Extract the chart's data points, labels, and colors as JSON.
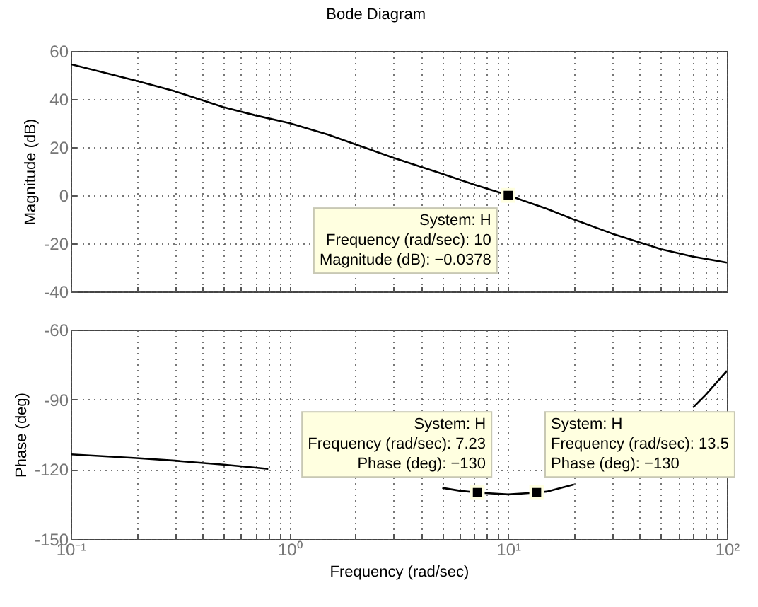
{
  "chart_data": [
    {
      "type": "line",
      "title": "Bode Diagram",
      "ylabel": "Magnitude (dB)",
      "series": [
        {
          "color": "#000000",
          "marker": "none",
          "x": [
            0.1,
            0.2,
            0.3,
            0.5,
            0.7,
            1,
            1.5,
            2,
            3,
            5,
            7,
            10,
            15,
            20,
            30,
            50,
            70,
            100
          ],
          "values": [
            54.5,
            47.6,
            43.2,
            36.6,
            33.2,
            30,
            25.2,
            21.2,
            15.5,
            8.9,
            4.4,
            0,
            -5.6,
            -10.1,
            -16,
            -22.4,
            -25.5,
            -28
          ]
        },
        {
          "type": "scatter",
          "color": "#000000",
          "marker": "square",
          "x": [
            10
          ],
          "values": [
            -0.0378
          ]
        }
      ],
      "xlim": [
        0.1,
        100
      ],
      "ylim": [
        -40,
        60
      ],
      "xticks": [
        {
          "value": 0.1,
          "label": null
        },
        {
          "value": 0.2,
          "label": null
        },
        {
          "value": 0.3,
          "label": null
        },
        {
          "value": 0.4,
          "label": null
        },
        {
          "value": 0.5,
          "label": null
        },
        {
          "value": 0.6,
          "label": null
        },
        {
          "value": 0.7,
          "label": null
        },
        {
          "value": 0.8,
          "label": null
        },
        {
          "value": 0.9,
          "label": null
        },
        {
          "value": 1,
          "label": null
        },
        {
          "value": 2,
          "label": null
        },
        {
          "value": 3,
          "label": null
        },
        {
          "value": 4,
          "label": null
        },
        {
          "value": 5,
          "label": null
        },
        {
          "value": 6,
          "label": null
        },
        {
          "value": 7,
          "label": null
        },
        {
          "value": 8,
          "label": null
        },
        {
          "value": 9,
          "label": null
        },
        {
          "value": 10,
          "label": null
        },
        {
          "value": 20,
          "label": null
        },
        {
          "value": 30,
          "label": null
        },
        {
          "value": 40,
          "label": null
        },
        {
          "value": 50,
          "label": null
        },
        {
          "value": 60,
          "label": null
        },
        {
          "value": 70,
          "label": null
        },
        {
          "value": 80,
          "label": null
        },
        {
          "value": 90,
          "label": null
        },
        {
          "value": 100,
          "label": null
        }
      ],
      "yticks": [
        -40,
        -20,
        0,
        20,
        40,
        60
      ],
      "log": "x",
      "grid": true,
      "tick_labels": "y",
      "annotations": [
        {
          "text": "System: H\nFrequency (rad/sec): 10\nMagnitude (dB): −0.0378",
          "x": 10,
          "y": -0.0378
        }
      ]
    },
    {
      "type": "line",
      "xlabel": "Frequency  (rad/sec)",
      "ylabel": "Phase (deg)",
      "series": [
        {
          "color": "#000000",
          "marker": "none",
          "x": [
            0.1,
            0.2,
            0.3,
            0.5,
            0.7,
            0.8,
            1,
            2,
            5,
            6,
            7.23,
            10,
            13.5,
            15,
            20,
            40,
            70,
            80,
            100
          ],
          "values": [
            -113.6,
            -115.2,
            -116.3,
            -118,
            -119.3,
            -119.8,
            null,
            null,
            -128,
            -129.2,
            -130,
            -130.8,
            -130,
            -129.6,
            -126.5,
            null,
            -93.5,
            -88,
            -77.7
          ]
        },
        {
          "type": "scatter",
          "color": "#000000",
          "marker": "square",
          "x": [
            7.23,
            13.5
          ],
          "values": [
            -130,
            -130
          ]
        }
      ],
      "xlim": [
        0.1,
        100
      ],
      "ylim": [
        -150,
        -60
      ],
      "xticks": [
        {
          "value": 0.1,
          "label": "10⁻¹"
        },
        {
          "value": 0.2,
          "label": null
        },
        {
          "value": 0.3,
          "label": null
        },
        {
          "value": 0.4,
          "label": null
        },
        {
          "value": 0.5,
          "label": null
        },
        {
          "value": 0.6,
          "label": null
        },
        {
          "value": 0.7,
          "label": null
        },
        {
          "value": 0.8,
          "label": null
        },
        {
          "value": 0.9,
          "label": null
        },
        {
          "value": 1,
          "label": "10⁰"
        },
        {
          "value": 2,
          "label": null
        },
        {
          "value": 3,
          "label": null
        },
        {
          "value": 4,
          "label": null
        },
        {
          "value": 5,
          "label": null
        },
        {
          "value": 6,
          "label": null
        },
        {
          "value": 7,
          "label": null
        },
        {
          "value": 8,
          "label": null
        },
        {
          "value": 9,
          "label": null
        },
        {
          "value": 10,
          "label": "10¹"
        },
        {
          "value": 20,
          "label": null
        },
        {
          "value": 30,
          "label": null
        },
        {
          "value": 40,
          "label": null
        },
        {
          "value": 50,
          "label": null
        },
        {
          "value": 60,
          "label": null
        },
        {
          "value": 70,
          "label": null
        },
        {
          "value": 80,
          "label": null
        },
        {
          "value": 90,
          "label": null
        },
        {
          "value": 100,
          "label": "10²"
        }
      ],
      "yticks": [
        -150,
        -120,
        -90,
        -60
      ],
      "log": "x",
      "grid": true,
      "annotations": [
        {
          "text": "System: H\nFrequency (rad/sec): 7.23\nPhase (deg): −130",
          "x": 7.23,
          "y": -130
        },
        {
          "text": "System: H\nFrequency (rad/sec): 13.5\nPhase (deg): −130",
          "x": 13.5,
          "y": -130
        }
      ]
    }
  ]
}
